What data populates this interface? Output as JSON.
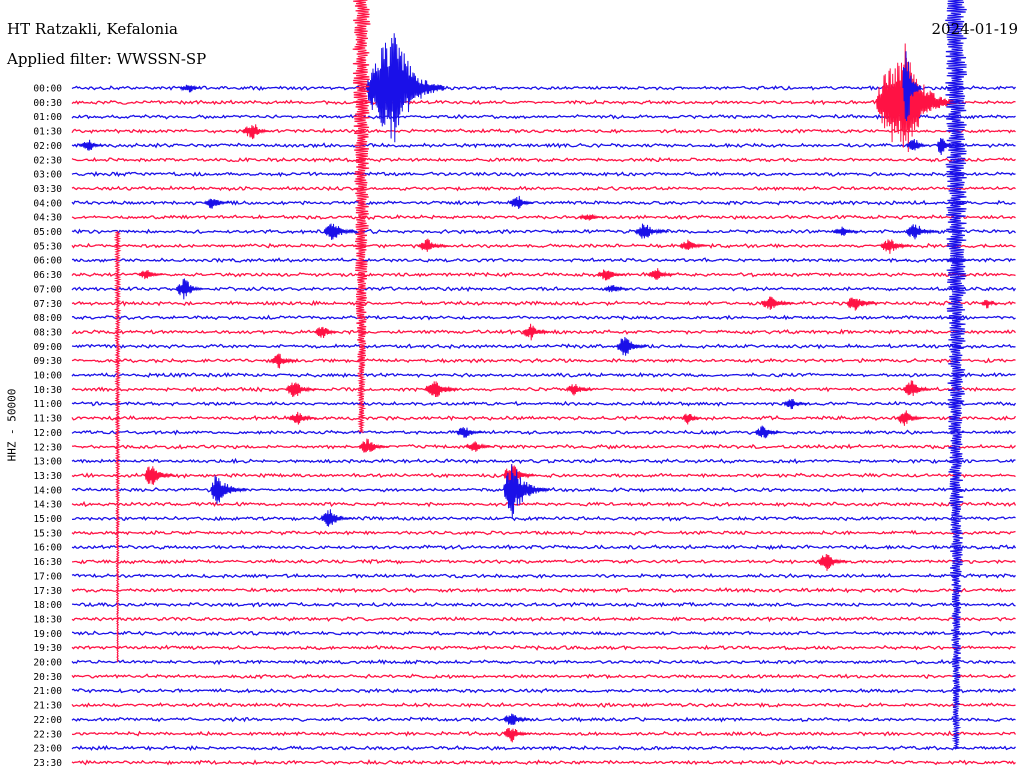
{
  "header": {
    "station": "HT Ratzakli, Kefalonia",
    "filter": "Applied filter: WWSSN-SP",
    "date": "2024-01-19"
  },
  "colors": {
    "blue": "#1a10e8",
    "red": "#ff1244",
    "background": "#ffffff"
  },
  "chart_data": {
    "type": "line",
    "title": "HT Ratzakli, Kefalonia",
    "subtitle": "Applied filter: WWSSN-SP",
    "date": "2024-01-19",
    "ylabel": "HHZ - 50000",
    "xlabel": "",
    "row_labels": [
      "00:00",
      "00:30",
      "01:00",
      "01:30",
      "02:00",
      "02:30",
      "03:00",
      "03:30",
      "04:00",
      "04:30",
      "05:00",
      "05:30",
      "06:00",
      "06:30",
      "07:00",
      "07:30",
      "08:00",
      "08:30",
      "09:00",
      "09:30",
      "10:00",
      "10:30",
      "11:00",
      "11:30",
      "12:00",
      "12:30",
      "13:00",
      "13:30",
      "14:00",
      "14:30",
      "15:00",
      "15:30",
      "16:00",
      "16:30",
      "17:00",
      "17:30",
      "18:00",
      "18:30",
      "19:00",
      "19:30",
      "20:00",
      "20:30",
      "21:00",
      "21:30",
      "22:00",
      "22:30",
      "23:00",
      "23:30"
    ],
    "row_minutes": 30,
    "series_colors": [
      "#1a10e8",
      "#ff1244"
    ],
    "events": [
      {
        "row": 0,
        "minute": 10.3,
        "amp": 60,
        "up": 10,
        "down": 16
      },
      {
        "row": 0,
        "minute": 3.8,
        "amp": 5,
        "up": 4,
        "down": 3
      },
      {
        "row": 1,
        "minute": 26.5,
        "amp": 60,
        "up": 10,
        "down": 16
      },
      {
        "row": 3,
        "minute": 5.8,
        "amp": 9,
        "up": 4,
        "down": 5
      },
      {
        "row": 4,
        "minute": 27.6,
        "amp": 11,
        "up": 1,
        "down": 6
      },
      {
        "row": 4,
        "minute": 26.8,
        "amp": 8,
        "up": 3,
        "down": 4
      },
      {
        "row": 4,
        "minute": 0.6,
        "amp": 6,
        "up": 4,
        "down": 4
      },
      {
        "row": 8,
        "minute": 4.5,
        "amp": 8,
        "up": 3,
        "down": 5
      },
      {
        "row": 8,
        "minute": 14.2,
        "amp": 8,
        "up": 3,
        "down": 5
      },
      {
        "row": 9,
        "minute": 16.5,
        "amp": 4,
        "up": 4,
        "down": 4
      },
      {
        "row": 10,
        "minute": 8.3,
        "amp": 11,
        "up": 3,
        "down": 8
      },
      {
        "row": 10,
        "minute": 18.2,
        "amp": 10,
        "up": 3,
        "down": 8
      },
      {
        "row": 10,
        "minute": 24.5,
        "amp": 6,
        "up": 3,
        "down": 5
      },
      {
        "row": 10,
        "minute": 26.8,
        "amp": 10,
        "up": 3,
        "down": 8
      },
      {
        "row": 11,
        "minute": 11.3,
        "amp": 8,
        "up": 3,
        "down": 7
      },
      {
        "row": 11,
        "minute": 19.6,
        "amp": 7,
        "up": 3,
        "down": 6
      },
      {
        "row": 11,
        "minute": 26.0,
        "amp": 9,
        "up": 3,
        "down": 7
      },
      {
        "row": 12,
        "minute": 28.1,
        "amp": 4,
        "up": 3,
        "down": 5
      },
      {
        "row": 13,
        "minute": 2.4,
        "amp": 6,
        "up": 3,
        "down": 5
      },
      {
        "row": 13,
        "minute": 17.0,
        "amp": 7,
        "up": 3,
        "down": 6
      },
      {
        "row": 13,
        "minute": 18.6,
        "amp": 7,
        "up": 3,
        "down": 6
      },
      {
        "row": 14,
        "minute": 3.6,
        "amp": 12,
        "up": 3,
        "down": 6
      },
      {
        "row": 14,
        "minute": 17.2,
        "amp": 5,
        "up": 3,
        "down": 5
      },
      {
        "row": 15,
        "minute": 22.2,
        "amp": 8,
        "up": 3,
        "down": 8
      },
      {
        "row": 15,
        "minute": 29.1,
        "amp": 6,
        "up": 2,
        "down": 3
      },
      {
        "row": 15,
        "minute": 24.9,
        "amp": 9,
        "up": 3,
        "down": 7
      },
      {
        "row": 17,
        "minute": 14.6,
        "amp": 9,
        "up": 3,
        "down": 6
      },
      {
        "row": 17,
        "minute": 8.0,
        "amp": 7,
        "up": 3,
        "down": 5
      },
      {
        "row": 18,
        "minute": 17.6,
        "amp": 12,
        "up": 3,
        "down": 7
      },
      {
        "row": 19,
        "minute": 6.6,
        "amp": 8,
        "up": 3,
        "down": 6
      },
      {
        "row": 21,
        "minute": 7.1,
        "amp": 10,
        "up": 3,
        "down": 7
      },
      {
        "row": 21,
        "minute": 11.5,
        "amp": 9,
        "up": 3,
        "down": 7
      },
      {
        "row": 21,
        "minute": 11.6,
        "amp": 10,
        "up": 3,
        "down": 7
      },
      {
        "row": 21,
        "minute": 16.0,
        "amp": 7,
        "up": 3,
        "down": 6
      },
      {
        "row": 21,
        "minute": 26.7,
        "amp": 10,
        "up": 3,
        "down": 6
      },
      {
        "row": 22,
        "minute": 22.9,
        "amp": 6,
        "up": 3,
        "down": 5
      },
      {
        "row": 23,
        "minute": 7.2,
        "amp": 7,
        "up": 3,
        "down": 6
      },
      {
        "row": 23,
        "minute": 26.5,
        "amp": 9,
        "up": 3,
        "down": 6
      },
      {
        "row": 23,
        "minute": 19.6,
        "amp": 8,
        "up": 2,
        "down": 4
      },
      {
        "row": 24,
        "minute": 12.5,
        "amp": 7,
        "up": 3,
        "down": 6
      },
      {
        "row": 24,
        "minute": 22.0,
        "amp": 8,
        "up": 3,
        "down": 6
      },
      {
        "row": 25,
        "minute": 9.4,
        "amp": 9,
        "up": 3,
        "down": 7
      },
      {
        "row": 25,
        "minute": 12.8,
        "amp": 7,
        "up": 3,
        "down": 6
      },
      {
        "row": 27,
        "minute": 2.5,
        "amp": 14,
        "up": 2,
        "down": 8
      },
      {
        "row": 27,
        "minute": 14.0,
        "amp": 14,
        "up": 3,
        "down": 7
      },
      {
        "row": 28,
        "minute": 4.6,
        "amp": 18,
        "up": 2,
        "down": 10
      },
      {
        "row": 28,
        "minute": 14.0,
        "amp": 30,
        "up": 3,
        "down": 12
      },
      {
        "row": 30,
        "minute": 8.2,
        "amp": 10,
        "up": 3,
        "down": 7
      },
      {
        "row": 33,
        "minute": 24.0,
        "amp": 10,
        "up": 3,
        "down": 7
      },
      {
        "row": 44,
        "minute": 14.0,
        "amp": 8,
        "up": 3,
        "down": 6
      },
      {
        "row": 45,
        "minute": 14.0,
        "amp": 9,
        "up": 3,
        "down": 6
      },
      {
        "row": 0,
        "minute": 26.5,
        "amp": 55,
        "up": 1,
        "down": 5
      }
    ]
  }
}
